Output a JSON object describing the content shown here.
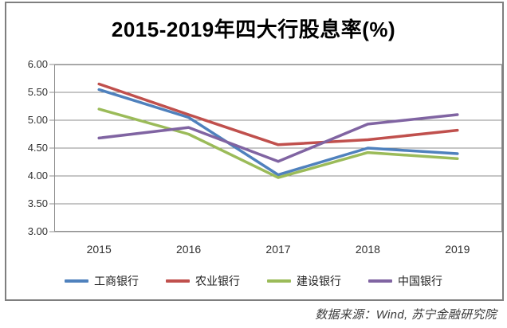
{
  "title": "2015-2019年四大行股息率(%)",
  "source_note": "数据来源：Wind, 苏宁金融研究院",
  "colors": {
    "frame_border": "#7f7f7f",
    "gridline": "#8c8c8c",
    "plot_border": "#8c8c8c",
    "axis_text": "#303030",
    "title_text": "#000000",
    "source_text": "#3a3a3a"
  },
  "chart_data": {
    "type": "line",
    "title": "2015-2019年四大行股息率(%)",
    "xlabel": "",
    "ylabel": "",
    "categories": [
      "2015",
      "2016",
      "2017",
      "2018",
      "2019"
    ],
    "series": [
      {
        "name": "工商银行",
        "color": "#4f81bd",
        "values": [
          5.55,
          5.05,
          4.02,
          4.5,
          4.4
        ]
      },
      {
        "name": "农业银行",
        "color": "#c0504d",
        "values": [
          5.65,
          5.1,
          4.56,
          4.65,
          4.82
        ]
      },
      {
        "name": "建设银行",
        "color": "#9bbb59",
        "values": [
          5.2,
          4.75,
          3.97,
          4.42,
          4.31
        ]
      },
      {
        "name": "中国银行",
        "color": "#8064a2",
        "values": [
          4.68,
          4.87,
          4.26,
          4.93,
          5.1
        ]
      }
    ],
    "ylim": [
      3.0,
      6.0
    ],
    "ytick_step": 0.5,
    "ytick_labels": [
      "6.00",
      "5.50",
      "5.00",
      "4.50",
      "4.00",
      "3.50",
      "3.00"
    ],
    "grid": "horizontal",
    "legend_position": "bottom"
  }
}
